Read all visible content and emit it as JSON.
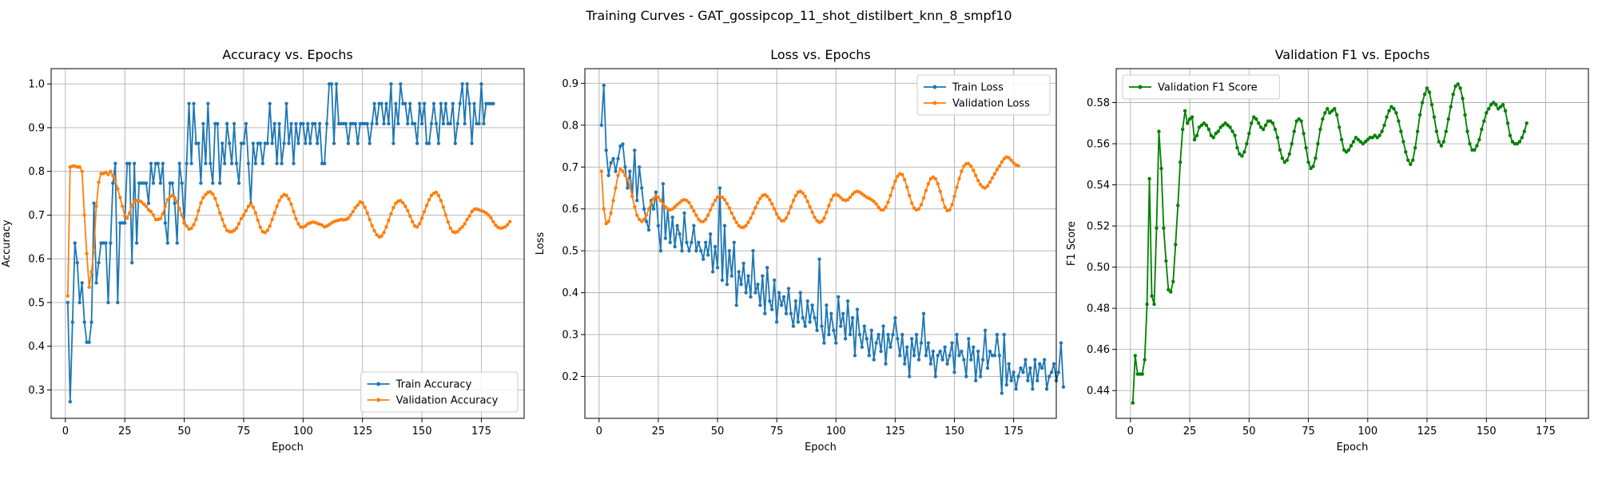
{
  "suptitle": "Training Curves - GAT_gossipcop_11_shot_distilbert_knn_8_smpf10",
  "chart_data": [
    {
      "type": "line",
      "title": "Accuracy vs. Epochs",
      "xlabel": "Epoch",
      "ylabel": "Accuracy",
      "xlim": [
        -6,
        193
      ],
      "ylim": [
        0.235,
        1.035
      ],
      "xticks": [
        0,
        25,
        50,
        75,
        100,
        125,
        150,
        175
      ],
      "yticks": [
        0.3,
        0.4,
        0.5,
        0.6,
        0.7,
        0.8,
        0.9,
        1.0
      ],
      "grid": true,
      "legend_loc": "lower-right",
      "series": [
        {
          "name": "Train Accuracy",
          "color": "#1f77b4",
          "x_start": 1,
          "values": [
            0.5,
            0.273,
            0.455,
            0.636,
            0.591,
            0.5,
            0.545,
            0.455,
            0.409,
            0.409,
            0.455,
            0.727,
            0.545,
            0.591,
            0.636,
            0.636,
            0.636,
            0.5,
            0.636,
            0.773,
            0.818,
            0.5,
            0.682,
            0.682,
            0.682,
            0.818,
            0.818,
            0.591,
            0.818,
            0.636,
            0.773,
            0.773,
            0.773,
            0.773,
            0.727,
            0.818,
            0.773,
            0.818,
            0.818,
            0.773,
            0.818,
            0.682,
            0.636,
            0.773,
            0.773,
            0.727,
            0.636,
            0.818,
            0.773,
            0.682,
            0.818,
            0.955,
            0.818,
            0.955,
            0.864,
            0.864,
            0.773,
            0.909,
            0.818,
            0.955,
            0.818,
            0.773,
            0.909,
            0.909,
            0.773,
            0.864,
            0.818,
            0.909,
            0.864,
            0.818,
            0.909,
            0.818,
            0.773,
            0.864,
            0.864,
            0.909,
            0.818,
            0.727,
            0.864,
            0.818,
            0.864,
            0.864,
            0.818,
            0.864,
            0.864,
            0.955,
            0.864,
            0.909,
            0.818,
            0.909,
            0.818,
            0.864,
            0.955,
            0.864,
            0.909,
            0.818,
            0.909,
            0.864,
            0.909,
            0.909,
            0.864,
            0.909,
            0.864,
            0.909,
            0.909,
            0.864,
            0.909,
            0.818,
            0.818,
            0.909,
            1.0,
            1.0,
            0.864,
            1.0,
            0.909,
            0.909,
            0.909,
            0.909,
            0.864,
            0.909,
            0.909,
            0.909,
            0.864,
            0.909,
            0.909,
            0.909,
            0.909,
            0.864,
            0.909,
            0.955,
            0.909,
            0.955,
            0.955,
            0.909,
            0.955,
            0.909,
            1.0,
            0.864,
            0.955,
            0.909,
            1.0,
            0.955,
            0.955,
            0.909,
            0.955,
            0.909,
            0.909,
            0.864,
            0.955,
            0.909,
            0.955,
            0.864,
            0.864,
            0.909,
            0.955,
            0.909,
            0.864,
            0.955,
            0.909,
            0.955,
            0.909,
            0.909,
            0.955,
            0.864,
            0.909,
            0.955,
            1.0,
            0.909,
            1.0,
            0.955,
            0.864,
            0.955,
            0.909,
            0.909,
            1.0,
            0.909,
            0.955,
            0.955,
            0.955,
            0.955
          ]
        },
        {
          "name": "Validation Accuracy",
          "color": "#ff7f0e",
          "x_start": 1,
          "values": [
            0.515,
            0.81,
            0.812,
            0.812,
            0.81,
            0.81,
            0.8,
            0.7,
            0.612,
            0.535,
            0.57,
            0.62,
            0.72,
            0.775,
            0.795,
            0.795,
            0.798,
            0.793,
            0.8,
            0.79,
            0.78,
            0.76,
            0.74,
            0.72,
            0.698,
            0.693,
            0.705,
            0.722,
            0.732,
            0.733,
            0.733,
            0.73,
            0.725,
            0.72,
            0.712,
            0.708,
            0.7,
            0.69,
            0.69,
            0.692,
            0.703,
            0.72,
            0.735,
            0.742,
            0.745,
            0.74,
            0.73,
            0.715,
            0.7,
            0.683,
            0.675,
            0.668,
            0.67,
            0.678,
            0.69,
            0.71,
            0.728,
            0.74,
            0.747,
            0.752,
            0.753,
            0.748,
            0.738,
            0.722,
            0.705,
            0.69,
            0.675,
            0.665,
            0.662,
            0.662,
            0.665,
            0.67,
            0.68,
            0.692,
            0.7,
            0.71,
            0.72,
            0.725,
            0.718,
            0.705,
            0.688,
            0.672,
            0.662,
            0.66,
            0.665,
            0.675,
            0.69,
            0.705,
            0.72,
            0.733,
            0.742,
            0.747,
            0.745,
            0.737,
            0.725,
            0.708,
            0.692,
            0.68,
            0.673,
            0.672,
            0.675,
            0.68,
            0.682,
            0.684,
            0.683,
            0.681,
            0.679,
            0.677,
            0.673,
            0.675,
            0.678,
            0.682,
            0.685,
            0.687,
            0.688,
            0.69,
            0.689,
            0.69,
            0.693,
            0.7,
            0.708,
            0.717,
            0.723,
            0.73,
            0.728,
            0.718,
            0.705,
            0.69,
            0.676,
            0.664,
            0.655,
            0.65,
            0.652,
            0.66,
            0.673,
            0.688,
            0.703,
            0.717,
            0.727,
            0.732,
            0.733,
            0.728,
            0.72,
            0.71,
            0.698,
            0.685,
            0.675,
            0.673,
            0.68,
            0.693,
            0.708,
            0.722,
            0.735,
            0.745,
            0.75,
            0.752,
            0.745,
            0.733,
            0.718,
            0.7,
            0.684,
            0.67,
            0.662,
            0.66,
            0.662,
            0.668,
            0.673,
            0.68,
            0.69,
            0.698,
            0.708,
            0.713,
            0.714,
            0.712,
            0.71,
            0.708,
            0.705,
            0.7,
            0.694,
            0.685,
            0.677,
            0.672,
            0.67,
            0.671,
            0.673,
            0.678,
            0.685
          ]
        }
      ]
    },
    {
      "type": "line",
      "title": "Loss vs. Epochs",
      "xlabel": "Epoch",
      "ylabel": "Loss",
      "xlim": [
        -6,
        193
      ],
      "ylim": [
        0.1,
        0.935
      ],
      "xticks": [
        0,
        25,
        50,
        75,
        100,
        125,
        150,
        175
      ],
      "yticks": [
        0.2,
        0.3,
        0.4,
        0.5,
        0.6,
        0.7,
        0.8,
        0.9
      ],
      "grid": true,
      "legend_loc": "upper-right",
      "series": [
        {
          "name": "Train Loss",
          "color": "#1f77b4",
          "x_start": 1,
          "values": [
            0.8,
            0.895,
            0.74,
            0.68,
            0.71,
            0.72,
            0.69,
            0.72,
            0.75,
            0.755,
            0.7,
            0.65,
            0.69,
            0.63,
            0.74,
            0.62,
            0.7,
            0.65,
            0.6,
            0.57,
            0.55,
            0.62,
            0.6,
            0.64,
            0.56,
            0.5,
            0.66,
            0.53,
            0.6,
            0.52,
            0.58,
            0.51,
            0.56,
            0.54,
            0.5,
            0.59,
            0.52,
            0.5,
            0.52,
            0.56,
            0.5,
            0.52,
            0.5,
            0.48,
            0.52,
            0.49,
            0.54,
            0.45,
            0.51,
            0.46,
            0.65,
            0.43,
            0.56,
            0.42,
            0.5,
            0.44,
            0.52,
            0.37,
            0.45,
            0.42,
            0.47,
            0.4,
            0.44,
            0.39,
            0.5,
            0.4,
            0.42,
            0.37,
            0.44,
            0.35,
            0.46,
            0.38,
            0.36,
            0.43,
            0.33,
            0.4,
            0.37,
            0.39,
            0.35,
            0.41,
            0.35,
            0.32,
            0.38,
            0.33,
            0.4,
            0.34,
            0.32,
            0.38,
            0.33,
            0.37,
            0.34,
            0.31,
            0.48,
            0.32,
            0.28,
            0.37,
            0.3,
            0.35,
            0.31,
            0.28,
            0.39,
            0.32,
            0.35,
            0.29,
            0.38,
            0.3,
            0.34,
            0.25,
            0.36,
            0.3,
            0.27,
            0.32,
            0.29,
            0.25,
            0.31,
            0.24,
            0.28,
            0.3,
            0.26,
            0.32,
            0.23,
            0.3,
            0.27,
            0.3,
            0.34,
            0.29,
            0.25,
            0.3,
            0.23,
            0.27,
            0.2,
            0.29,
            0.25,
            0.3,
            0.24,
            0.28,
            0.35,
            0.25,
            0.28,
            0.23,
            0.26,
            0.2,
            0.25,
            0.26,
            0.24,
            0.27,
            0.23,
            0.25,
            0.28,
            0.21,
            0.3,
            0.25,
            0.26,
            0.24,
            0.2,
            0.29,
            0.24,
            0.27,
            0.19,
            0.26,
            0.2,
            0.24,
            0.31,
            0.22,
            0.26,
            0.25,
            0.25,
            0.3,
            0.25,
            0.16,
            0.3,
            0.18,
            0.23,
            0.19,
            0.21,
            0.17,
            0.2,
            0.22,
            0.21,
            0.24,
            0.19,
            0.22,
            0.17,
            0.24,
            0.19,
            0.23,
            0.22,
            0.24,
            0.17,
            0.2,
            0.21,
            0.23,
            0.19,
            0.21,
            0.28,
            0.175
          ]
        },
        {
          "name": "Validation Loss",
          "color": "#ff7f0e",
          "x_start": 1,
          "values": [
            0.69,
            0.6,
            0.565,
            0.57,
            0.59,
            0.62,
            0.65,
            0.68,
            0.695,
            0.69,
            0.68,
            0.67,
            0.655,
            0.63,
            0.605,
            0.585,
            0.575,
            0.57,
            0.575,
            0.585,
            0.6,
            0.615,
            0.625,
            0.63,
            0.628,
            0.62,
            0.612,
            0.605,
            0.6,
            0.598,
            0.6,
            0.605,
            0.61,
            0.615,
            0.62,
            0.622,
            0.62,
            0.615,
            0.605,
            0.595,
            0.585,
            0.575,
            0.57,
            0.57,
            0.575,
            0.585,
            0.598,
            0.61,
            0.62,
            0.628,
            0.63,
            0.628,
            0.622,
            0.613,
            0.602,
            0.59,
            0.578,
            0.568,
            0.56,
            0.556,
            0.556,
            0.56,
            0.568,
            0.578,
            0.59,
            0.603,
            0.615,
            0.625,
            0.632,
            0.634,
            0.63,
            0.622,
            0.612,
            0.6,
            0.588,
            0.578,
            0.572,
            0.572,
            0.578,
            0.59,
            0.605,
            0.62,
            0.632,
            0.64,
            0.642,
            0.638,
            0.63,
            0.618,
            0.605,
            0.592,
            0.58,
            0.572,
            0.568,
            0.57,
            0.578,
            0.592,
            0.608,
            0.622,
            0.632,
            0.635,
            0.632,
            0.627,
            0.622,
            0.62,
            0.622,
            0.628,
            0.635,
            0.64,
            0.642,
            0.64,
            0.636,
            0.632,
            0.628,
            0.625,
            0.622,
            0.618,
            0.612,
            0.604,
            0.598,
            0.598,
            0.604,
            0.616,
            0.632,
            0.65,
            0.666,
            0.678,
            0.684,
            0.682,
            0.67,
            0.652,
            0.632,
            0.614,
            0.602,
            0.598,
            0.6,
            0.61,
            0.626,
            0.644,
            0.66,
            0.672,
            0.676,
            0.672,
            0.66,
            0.642,
            0.622,
            0.604,
            0.596,
            0.598,
            0.61,
            0.63,
            0.652,
            0.672,
            0.69,
            0.702,
            0.708,
            0.708,
            0.702,
            0.692,
            0.68,
            0.668,
            0.658,
            0.652,
            0.65,
            0.655,
            0.664,
            0.674,
            0.684,
            0.694,
            0.702,
            0.712,
            0.72,
            0.724,
            0.722,
            0.716,
            0.71,
            0.705,
            0.703
          ]
        }
      ]
    },
    {
      "type": "line",
      "title": "Validation F1 vs. Epochs",
      "xlabel": "Epoch",
      "ylabel": "F1 Score",
      "xlim": [
        -6,
        193
      ],
      "ylim": [
        0.4265,
        0.5965
      ],
      "xticks": [
        0,
        25,
        50,
        75,
        100,
        125,
        150,
        175
      ],
      "yticks": [
        0.44,
        0.46,
        0.48,
        0.5,
        0.52,
        0.54,
        0.56,
        0.58
      ],
      "grid": true,
      "legend_loc": "upper-left",
      "series": [
        {
          "name": "Validation F1 Score",
          "color": "#008000",
          "x_start": 1,
          "values": [
            0.434,
            0.457,
            0.448,
            0.448,
            0.448,
            0.455,
            0.482,
            0.543,
            0.486,
            0.482,
            0.519,
            0.566,
            0.548,
            0.519,
            0.503,
            0.489,
            0.488,
            0.493,
            0.511,
            0.53,
            0.551,
            0.567,
            0.576,
            0.57,
            0.572,
            0.573,
            0.562,
            0.564,
            0.568,
            0.569,
            0.57,
            0.569,
            0.567,
            0.564,
            0.563,
            0.565,
            0.566,
            0.568,
            0.569,
            0.57,
            0.569,
            0.568,
            0.566,
            0.564,
            0.558,
            0.555,
            0.554,
            0.556,
            0.56,
            0.565,
            0.57,
            0.573,
            0.572,
            0.57,
            0.568,
            0.567,
            0.569,
            0.571,
            0.571,
            0.57,
            0.567,
            0.563,
            0.557,
            0.553,
            0.551,
            0.552,
            0.555,
            0.56,
            0.566,
            0.571,
            0.572,
            0.571,
            0.565,
            0.558,
            0.551,
            0.548,
            0.549,
            0.553,
            0.56,
            0.567,
            0.572,
            0.575,
            0.577,
            0.575,
            0.576,
            0.577,
            0.574,
            0.568,
            0.562,
            0.557,
            0.556,
            0.557,
            0.559,
            0.561,
            0.563,
            0.562,
            0.561,
            0.56,
            0.561,
            0.562,
            0.563,
            0.563,
            0.564,
            0.563,
            0.564,
            0.566,
            0.569,
            0.573,
            0.576,
            0.578,
            0.577,
            0.575,
            0.571,
            0.566,
            0.561,
            0.556,
            0.552,
            0.55,
            0.552,
            0.558,
            0.566,
            0.574,
            0.58,
            0.584,
            0.587,
            0.585,
            0.579,
            0.573,
            0.566,
            0.561,
            0.559,
            0.561,
            0.566,
            0.572,
            0.578,
            0.584,
            0.588,
            0.589,
            0.587,
            0.582,
            0.574,
            0.566,
            0.56,
            0.557,
            0.557,
            0.559,
            0.562,
            0.567,
            0.571,
            0.575,
            0.577,
            0.579,
            0.58,
            0.579,
            0.577,
            0.578,
            0.579,
            0.576,
            0.57,
            0.564,
            0.561,
            0.56,
            0.56,
            0.561,
            0.563,
            0.566,
            0.57
          ]
        }
      ]
    }
  ]
}
